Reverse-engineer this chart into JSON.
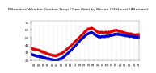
{
  "title": "Milwaukee Weather Outdoor Temp / Dew Point by Minute (24 Hours) (Alternate)",
  "title_fontsize": 3.2,
  "bg_color": "#ffffff",
  "grid_color": "#bbbbbb",
  "temp_color": "#dd0000",
  "dew_color": "#0000cc",
  "ylim": [
    20,
    72
  ],
  "yticks": [
    20,
    30,
    40,
    50,
    60,
    70
  ],
  "ylabel_fontsize": 3.0,
  "xlabel_fontsize": 2.5,
  "n_points": 1440,
  "temp_waypoints_x": [
    0,
    2,
    4,
    5.5,
    7,
    9,
    11,
    12.5,
    13.5,
    15,
    17,
    19,
    21,
    23,
    24
  ],
  "temp_waypoints_y": [
    36,
    33,
    28,
    26,
    30,
    40,
    52,
    61,
    63,
    57,
    57,
    60,
    56,
    54,
    54
  ],
  "dew_waypoints_x": [
    0,
    2,
    4,
    5.5,
    7,
    9,
    11,
    12.5,
    13.5,
    15,
    17,
    19,
    21,
    23,
    24
  ],
  "dew_waypoints_y": [
    28,
    25,
    22,
    20,
    23,
    34,
    47,
    55,
    57,
    51,
    52,
    55,
    53,
    51,
    51
  ]
}
